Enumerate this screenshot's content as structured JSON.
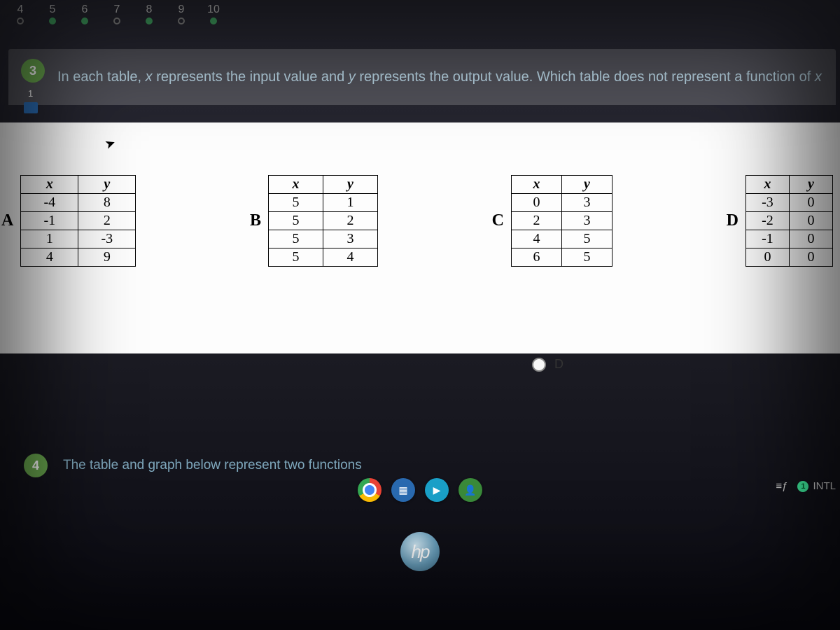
{
  "page_nav": {
    "items": [
      {
        "n": "4",
        "style": "open"
      },
      {
        "n": "5",
        "style": "filled"
      },
      {
        "n": "6",
        "style": "filled"
      },
      {
        "n": "7",
        "style": "open"
      },
      {
        "n": "8",
        "style": "filled"
      },
      {
        "n": "9",
        "style": "open"
      },
      {
        "n": "10",
        "style": "filled"
      }
    ]
  },
  "question": {
    "number": "3",
    "sub_number": "1",
    "text_before_x": "In each table, ",
    "var_x": "x",
    "text_mid": " represents the input value and ",
    "var_y": "y",
    "text_after": " represents the output value. Which table does  not represent a function of ",
    "var_x2": "x"
  },
  "tables": {
    "header_x": "x",
    "header_y": "y",
    "A": {
      "label": "A",
      "rows": [
        [
          "-4",
          "8"
        ],
        [
          "-1",
          "2"
        ],
        [
          "1",
          "-3"
        ],
        [
          "4",
          "9"
        ]
      ]
    },
    "B": {
      "label": "B",
      "rows": [
        [
          "5",
          "1"
        ],
        [
          "5",
          "2"
        ],
        [
          "5",
          "3"
        ],
        [
          "5",
          "4"
        ]
      ]
    },
    "C": {
      "label": "C",
      "rows": [
        [
          "0",
          "3"
        ],
        [
          "2",
          "3"
        ],
        [
          "4",
          "5"
        ],
        [
          "6",
          "5"
        ]
      ]
    },
    "D": {
      "label": "D",
      "rows": [
        [
          "-3",
          "0"
        ],
        [
          "-2",
          "0"
        ],
        [
          "-1",
          "0"
        ],
        [
          "0",
          "0"
        ]
      ]
    }
  },
  "answer_option": {
    "label": "D"
  },
  "next_question": {
    "number": "4",
    "text": "The table and graph below represent two functions"
  },
  "status": {
    "menu_glyph": "≡ƒ",
    "intl_label": "INTL",
    "intl_badge": "1"
  },
  "hp": {
    "text": "hp"
  },
  "colors": {
    "header_bg": "#505058",
    "q_text": "#b8d4e3",
    "badge": "#6aa84f",
    "panel": "#fdfdfd"
  }
}
